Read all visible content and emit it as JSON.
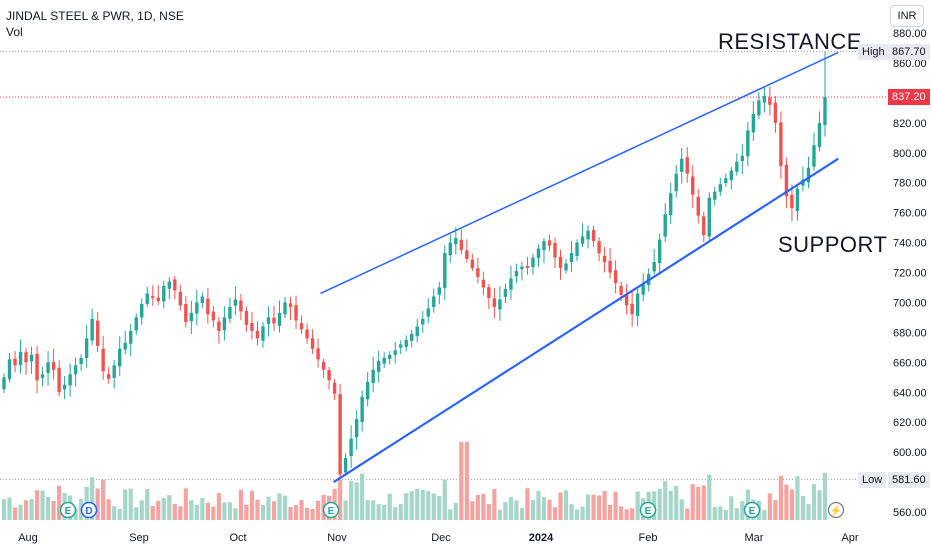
{
  "header": {
    "title": "JINDAL STEEL & PWR, 1D, NSE",
    "volume_label": "Vol"
  },
  "currency_button": "INR",
  "annotations": {
    "resistance": "RESISTANCE",
    "support": "SUPPORT"
  },
  "markers": {
    "high_label": "High",
    "high_value": "867.70",
    "last_value": "837.20",
    "low_label": "Low",
    "low_value": "581.60"
  },
  "colors": {
    "up": "#26a69a",
    "down": "#ef5350",
    "trendline": "#2962ff",
    "vol_up": "#a5d6c8",
    "vol_down": "#f5a3a1",
    "last_tag": "#f23645"
  },
  "events": [
    "E",
    "D",
    "E",
    "E",
    "E",
    "lightning"
  ],
  "chart_data": {
    "type": "candlestick",
    "title": "JINDAL STEEL & PWR, 1D, NSE",
    "x_tick_labels": [
      "Aug",
      "Sep",
      "Oct",
      "Nov",
      "Dec",
      "2024",
      "Feb",
      "Mar",
      "Apr"
    ],
    "y_tick_labels": [
      "560.00",
      "580.00",
      "600.00",
      "620.00",
      "640.00",
      "660.00",
      "680.00",
      "700.00",
      "720.00",
      "740.00",
      "760.00",
      "780.00",
      "800.00",
      "820.00",
      "840.00",
      "860.00",
      "880.00"
    ],
    "ylim": [
      550,
      890
    ],
    "grid": false,
    "price_series": {
      "name": "Close",
      "period": "2023-07-25 to 2024-03-27 (daily)",
      "closes": [
        650,
        662,
        658,
        667,
        660,
        665,
        648,
        652,
        660,
        655,
        640,
        645,
        652,
        658,
        663,
        676,
        689,
        671,
        654,
        649,
        658,
        669,
        673,
        681,
        690,
        699,
        706,
        703,
        701,
        711,
        714,
        708,
        698,
        687,
        693,
        700,
        704,
        692,
        688,
        681,
        690,
        697,
        702,
        694,
        685,
        681,
        676,
        684,
        690,
        686,
        693,
        700,
        697,
        688,
        682,
        676,
        669,
        662,
        655,
        648,
        639,
        585,
        596,
        609,
        622,
        637,
        647,
        655,
        661,
        663,
        665,
        668,
        672,
        675,
        679,
        684,
        689,
        696,
        704,
        710,
        733,
        740,
        743,
        735,
        729,
        723,
        717,
        710,
        703,
        697,
        702,
        709,
        716,
        721,
        724,
        723,
        730,
        736,
        741,
        738,
        730,
        723,
        726,
        733,
        740,
        744,
        748,
        741,
        733,
        727,
        720,
        713,
        705,
        698,
        692,
        706,
        712,
        719,
        727,
        742,
        759,
        773,
        786,
        796,
        786,
        772,
        758,
        745,
        770,
        774,
        779,
        783,
        788,
        794,
        798,
        815,
        826,
        835,
        838,
        832,
        820,
        791,
        771,
        763,
        776,
        782,
        790,
        805,
        820,
        837.2
      ]
    },
    "volume_series": {
      "name": "Vol",
      "unit": "shares",
      "note": "relative bar heights only; no volume axis shown"
    },
    "trendlines": [
      {
        "name": "RESISTANCE",
        "from": {
          "x": "2023-10-27",
          "y": 706
        },
        "to": {
          "x": "2024-04-01",
          "y": 867
        }
      },
      {
        "name": "SUPPORT",
        "from": {
          "x": "2023-10-31",
          "y": 580
        },
        "to": {
          "x": "2024-04-01",
          "y": 796
        }
      }
    ],
    "high": 867.7,
    "low": 581.6,
    "last": 837.2
  }
}
